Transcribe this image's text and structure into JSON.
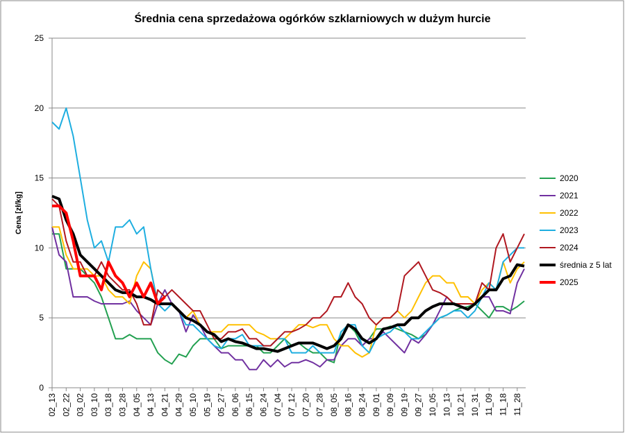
{
  "chart_data": {
    "type": "line",
    "title": "Średnia cena sprzedażowa ogórków szklarniowych w dużym hurcie",
    "y_label": "Cena [zł/kg]",
    "categories": [
      "02_13",
      null,
      "02_22",
      null,
      "03_02",
      null,
      "03_10",
      null,
      "03_18",
      null,
      "03_28",
      null,
      "04_05",
      null,
      "04_13",
      null,
      "04_21",
      null,
      "04_29",
      null,
      "05_10",
      null,
      "05_19",
      null,
      "05_27",
      null,
      "06_06",
      null,
      "06_15",
      null,
      "06_24",
      null,
      "07_04",
      null,
      "07_12",
      null,
      "07_20",
      null,
      "07_28",
      null,
      "08_05",
      null,
      "08_16",
      null,
      "08_24",
      null,
      "09_01",
      null,
      "09_09",
      null,
      "09_19",
      null,
      "09_27",
      null,
      "10_05",
      null,
      "10_13",
      null,
      "10_21",
      null,
      "10_31",
      null,
      "11_09",
      null,
      "11_18",
      null,
      "11_28",
      null
    ],
    "ylim": [
      0,
      25
    ],
    "yticks": [
      0,
      5,
      10,
      15,
      20,
      25
    ],
    "grid": true,
    "legend": "right",
    "series": [
      {
        "name": "2020",
        "color": "#22a050",
        "width": 2,
        "values": [
          11,
          11,
          8.5,
          8.5,
          8.5,
          8,
          7.5,
          6.5,
          5,
          3.5,
          3.5,
          3.8,
          3.5,
          3.5,
          3.5,
          2.5,
          2,
          1.7,
          2.4,
          2.2,
          3,
          3.5,
          3.5,
          3.5,
          2.8,
          3,
          3,
          3,
          3,
          3,
          2.5,
          2.5,
          3,
          3.5,
          3,
          3.2,
          2.8,
          2.5,
          2.5,
          2,
          1.8,
          4,
          4.5,
          4,
          3,
          3.5,
          4.2,
          4.2,
          4.4,
          4.2,
          4,
          3.8,
          3.5,
          3.8,
          4.5,
          5,
          5.2,
          5.5,
          5.7,
          5.8,
          6,
          5.5,
          5,
          5.8,
          5.8,
          5.5,
          5.8,
          6.2
        ]
      },
      {
        "name": "2021",
        "color": "#7030a0",
        "width": 2,
        "values": [
          11.5,
          9.5,
          9,
          6.5,
          6.5,
          6.5,
          6.2,
          6,
          6,
          6,
          6,
          6.2,
          5.5,
          5,
          4.5,
          6,
          7,
          6,
          5.5,
          4,
          5.2,
          4.5,
          3.5,
          3,
          2.5,
          2.5,
          2,
          2,
          1.3,
          1.3,
          2,
          1.5,
          2,
          1.5,
          1.8,
          1.8,
          2,
          1.8,
          1.5,
          2,
          2,
          3,
          3.5,
          3.5,
          3,
          3.5,
          3.5,
          4,
          3.5,
          3,
          2.5,
          3.5,
          3.2,
          3.8,
          4.5,
          5.5,
          6.5,
          6,
          6,
          6,
          6,
          6.5,
          6.5,
          5.5,
          5.5,
          5.3,
          7.5,
          8.5
        ]
      },
      {
        "name": "2022",
        "color": "#ffc000",
        "width": 2,
        "values": [
          11.5,
          11.5,
          9.5,
          8.5,
          8.5,
          8.5,
          8,
          8,
          7,
          6.5,
          6.5,
          6,
          8,
          9,
          8.5,
          6,
          6,
          6,
          5.5,
          5,
          5.5,
          4.5,
          4,
          4,
          4,
          4.5,
          4.5,
          4.5,
          4.5,
          4,
          3.8,
          3.5,
          3.5,
          3.5,
          4,
          4.5,
          4.5,
          4.3,
          4.5,
          4.5,
          3.5,
          3,
          3,
          2.5,
          2.2,
          2.5,
          4.5,
          5,
          5,
          5.5,
          5,
          5.5,
          6.5,
          7.5,
          8,
          8,
          7.5,
          7.5,
          6.5,
          6.5,
          6,
          7,
          7.5,
          7,
          9,
          7.5,
          8.5,
          9
        ]
      },
      {
        "name": "2023",
        "color": "#1eaee0",
        "width": 2,
        "values": [
          19,
          18.5,
          20,
          18,
          15,
          12,
          10,
          10.5,
          9,
          11.5,
          11.5,
          12,
          11,
          11.5,
          8.5,
          6,
          5.5,
          6,
          5.5,
          4.5,
          4.5,
          4,
          3.5,
          3,
          2.8,
          3.5,
          3.5,
          3.8,
          3,
          3,
          3,
          3,
          3.5,
          3.5,
          2.5,
          2.5,
          2.5,
          3,
          2.5,
          2.5,
          2.5,
          4,
          4.5,
          4.5,
          3,
          2.5,
          3.5,
          3.8,
          4,
          4.5,
          4,
          3.5,
          3.5,
          4,
          4.5,
          5,
          5.2,
          5.5,
          5.5,
          5,
          5.5,
          6.5,
          7.5,
          7,
          9,
          9.5,
          10,
          10
        ]
      },
      {
        "name": "2024",
        "color": "#b0171f",
        "width": 2,
        "values": [
          13.5,
          13,
          10.5,
          9,
          9,
          8,
          8,
          9,
          8,
          7.5,
          7,
          7,
          6,
          4.5,
          4.5,
          7,
          6.5,
          7,
          6.5,
          6,
          5.5,
          5.5,
          4.5,
          3.5,
          3.5,
          4,
          4,
          4.2,
          3.5,
          3.5,
          3,
          3,
          3.5,
          4,
          4,
          4.2,
          4.5,
          5,
          5,
          5.5,
          6.5,
          6.5,
          7.5,
          6.5,
          6,
          5,
          4.5,
          5,
          5,
          5.5,
          8,
          8.5,
          9,
          8,
          7,
          6.8,
          6.5,
          6,
          6,
          6,
          6,
          7.5,
          7,
          10,
          11,
          9,
          10,
          11
        ]
      },
      {
        "name": "średnia z 5 lat",
        "color": "#000000",
        "width": 4,
        "values": [
          13.7,
          13.5,
          12,
          11,
          9.5,
          9,
          8.5,
          8,
          7.5,
          7,
          6.8,
          6.8,
          6.5,
          6.5,
          6.3,
          6,
          6,
          6,
          5.5,
          5,
          4.8,
          4.5,
          4,
          3.8,
          3.3,
          3.5,
          3.3,
          3.2,
          3,
          2.8,
          2.8,
          2.7,
          2.6,
          2.8,
          3,
          3.2,
          3.2,
          3.2,
          3,
          2.8,
          3,
          3.5,
          4.5,
          4.2,
          3.5,
          3.2,
          3.5,
          4.2,
          4.3,
          4.5,
          4.5,
          5,
          5,
          5.5,
          5.8,
          6,
          6,
          6,
          5.8,
          5.6,
          6,
          6.5,
          7,
          7,
          7.8,
          8,
          8.8,
          8.7
        ]
      },
      {
        "name": "2025",
        "color": "#ff0000",
        "width": 4,
        "values": [
          13,
          13,
          12.5,
          10.5,
          8,
          8,
          8,
          7,
          9,
          8,
          7.5,
          6.5,
          7.5,
          6.5,
          7.5,
          6,
          6.5,
          null,
          null,
          null,
          null,
          null,
          null,
          null,
          null,
          null,
          null,
          null,
          null,
          null,
          null,
          null,
          null,
          null,
          null,
          null,
          null,
          null,
          null,
          null,
          null,
          null,
          null,
          null,
          null,
          null,
          null,
          null,
          null,
          null,
          null,
          null,
          null,
          null,
          null,
          null,
          null,
          null,
          null,
          null,
          null,
          null,
          null,
          null,
          null,
          null,
          null,
          null
        ]
      }
    ]
  }
}
